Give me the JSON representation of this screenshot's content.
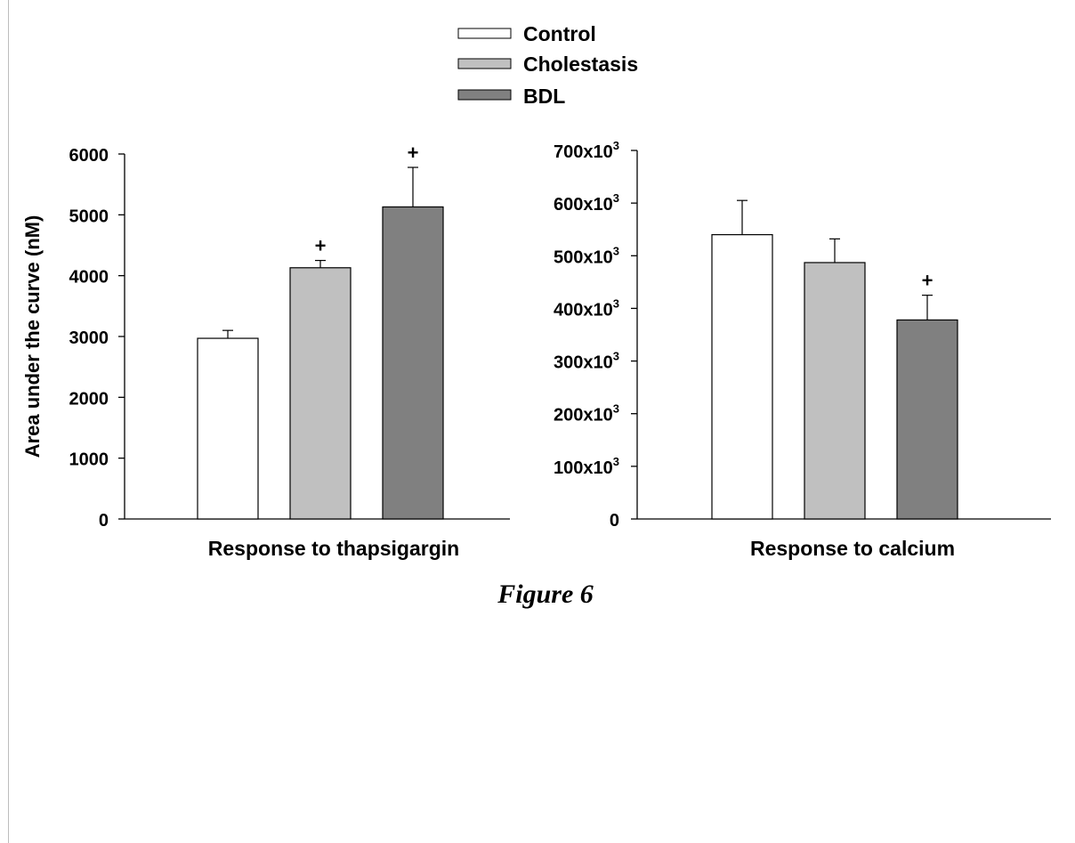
{
  "figure_caption": "Figure 6",
  "legend": {
    "items": [
      {
        "label": "Control",
        "color": "#ffffff"
      },
      {
        "label": "Cholestasis",
        "color": "#c0c0c0"
      },
      {
        "label": "BDL",
        "color": "#808080"
      }
    ]
  },
  "chart_data": [
    {
      "type": "bar",
      "title": "",
      "xlabel": "Response to thapsigargin",
      "ylabel": "Area under the curve (nM)",
      "ylim": [
        0,
        6000
      ],
      "yticks": [
        0,
        1000,
        2000,
        3000,
        4000,
        5000,
        6000
      ],
      "ytick_labels": [
        "0",
        "1000",
        "2000",
        "3000",
        "4000",
        "5000",
        "6000"
      ],
      "categories": [
        "Control",
        "Cholestasis",
        "BDL"
      ],
      "values": [
        2970,
        4130,
        5130
      ],
      "errors": [
        130,
        120,
        650
      ],
      "annotations": [
        "",
        "+",
        "+"
      ],
      "colors": [
        "#ffffff",
        "#c0c0c0",
        "#808080"
      ],
      "grid": false
    },
    {
      "type": "bar",
      "title": "",
      "xlabel": "Response to calcium",
      "ylabel": "",
      "ylim": [
        0,
        700000
      ],
      "yticks": [
        0,
        100000,
        200000,
        300000,
        400000,
        500000,
        600000,
        700000
      ],
      "ytick_labels": [
        "0",
        "100x10",
        "200x10",
        "300x10",
        "400x10",
        "500x10",
        "600x10",
        "700x10"
      ],
      "ytick_exponent": "3",
      "categories": [
        "Control",
        "Cholestasis",
        "BDL"
      ],
      "values": [
        540000,
        487000,
        378000
      ],
      "errors": [
        65000,
        45000,
        47000
      ],
      "annotations": [
        "",
        "",
        "+"
      ],
      "colors": [
        "#ffffff",
        "#c0c0c0",
        "#808080"
      ],
      "grid": false
    }
  ]
}
